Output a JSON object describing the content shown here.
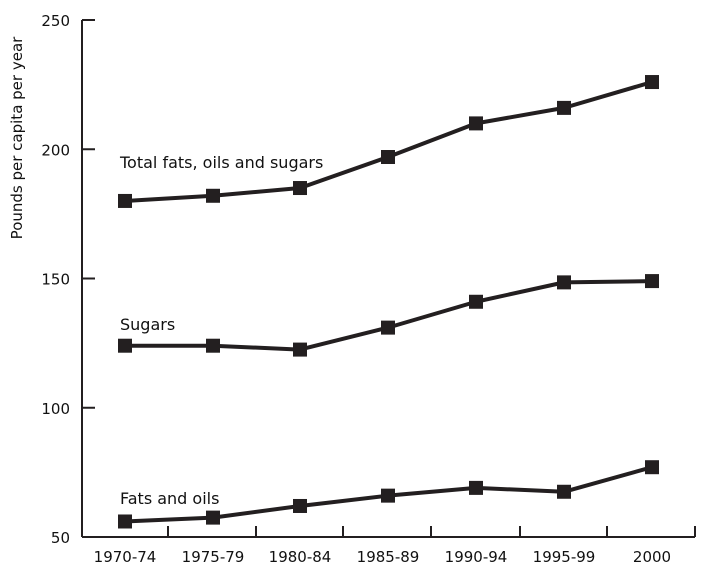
{
  "chart_data": {
    "type": "line",
    "title": "",
    "xlabel": "",
    "ylabel": "Pounds per capita per year",
    "categories": [
      "1970-74",
      "1975-79",
      "1980-84",
      "1985-89",
      "1990-94",
      "1995-99",
      "2000"
    ],
    "ylim": [
      50,
      250
    ],
    "yticks": [
      50,
      100,
      150,
      200,
      250
    ],
    "grid": false,
    "legend": "none",
    "line_color": "#231f20",
    "series": [
      {
        "name": "Total fats, oils and sugars",
        "values": [
          180,
          182,
          185,
          197,
          210,
          216,
          226
        ]
      },
      {
        "name": "Sugars",
        "values": [
          124,
          124,
          122.5,
          131,
          141,
          148.5,
          149
        ]
      },
      {
        "name": "Fats and oils",
        "values": [
          56,
          57.5,
          62,
          66,
          69,
          67.5,
          77
        ]
      }
    ]
  }
}
